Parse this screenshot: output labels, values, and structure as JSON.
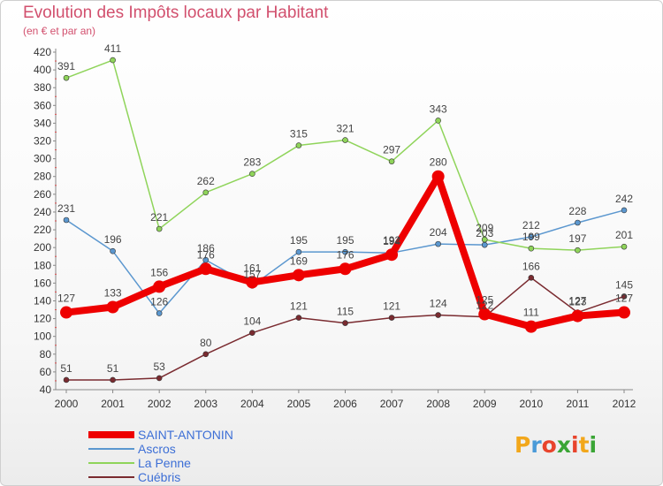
{
  "title": "Evolution des Impôts locaux par Habitant",
  "subtitle": "(en € et par an)",
  "logo": {
    "text": "Proxiti",
    "letters": [
      "P",
      "r",
      "o",
      "x",
      "i",
      "t",
      "i"
    ],
    "colors": [
      "#f2a71b",
      "#4a9ad8",
      "#e8442c",
      "#3aa535",
      "#e8442c",
      "#f2a71b",
      "#3aa535"
    ]
  },
  "chart_data": {
    "type": "line",
    "title": "Evolution des Impôts locaux par Habitant",
    "subtitle": "(en € et par an)",
    "categories": [
      "2000",
      "2001",
      "2002",
      "2003",
      "2004",
      "2005",
      "2006",
      "2007",
      "2008",
      "2009",
      "2010",
      "2011",
      "2012"
    ],
    "yticks": [
      40,
      60,
      80,
      100,
      120,
      140,
      160,
      180,
      200,
      220,
      240,
      260,
      280,
      300,
      320,
      340,
      360,
      380,
      400,
      420
    ],
    "ylim": [
      40,
      420
    ],
    "grid": false,
    "legend_position": "bottom-left",
    "series": [
      {
        "name": "SAINT-ANTONIN",
        "color": "#ee0000",
        "width": 8,
        "marker": 7,
        "values": [
          127,
          133,
          156,
          176,
          161,
          169,
          176,
          192,
          280,
          125,
          111,
          123,
          127
        ]
      },
      {
        "name": "Ascros",
        "color": "#5b97cf",
        "width": 1.5,
        "marker": 3,
        "values": [
          231,
          196,
          126,
          186,
          157,
          195,
          195,
          194,
          204,
          203,
          212,
          228,
          242
        ]
      },
      {
        "name": "La Penne",
        "color": "#8fd45a",
        "width": 1.5,
        "marker": 3,
        "values": [
          391,
          411,
          221,
          262,
          283,
          315,
          321,
          297,
          343,
          209,
          199,
          197,
          201
        ]
      },
      {
        "name": "Cuébris",
        "color": "#7a2b30",
        "width": 1.5,
        "marker": 3,
        "values": [
          51,
          51,
          53,
          80,
          104,
          121,
          115,
          121,
          124,
          122,
          166,
          127,
          145
        ]
      }
    ]
  }
}
